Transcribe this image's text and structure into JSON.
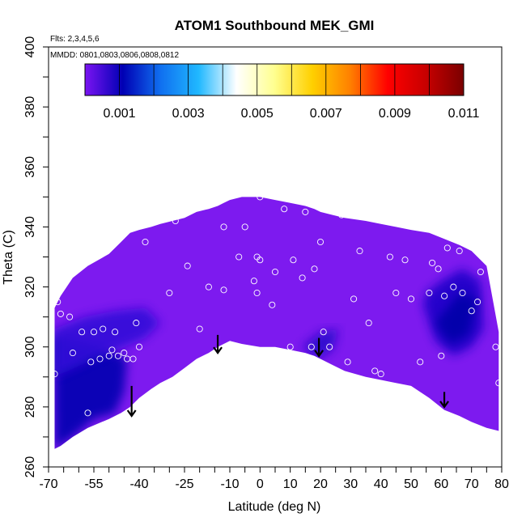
{
  "chart_data": {
    "type": "heatmap",
    "title": "ATOM1 Southbound MEK_GMI",
    "flights_note": "Flts: 2,3,4,5,6",
    "dates_note": "MMDD: 0801,0803,0806,0808,0812",
    "xlabel": "Latitude (deg N)",
    "ylabel": "Theta (C)",
    "xlim": [
      -70,
      80
    ],
    "ylim": [
      260,
      400
    ],
    "x_ticks": [
      -70,
      -55,
      -40,
      -25,
      -10,
      0,
      10,
      20,
      30,
      40,
      50,
      60,
      70,
      80
    ],
    "y_ticks": [
      260,
      280,
      300,
      320,
      340,
      360,
      380,
      400
    ],
    "colorbar": {
      "min": 0,
      "max": 0.011,
      "tick_values": [
        0.001,
        0.003,
        0.005,
        0.007,
        0.009,
        0.011
      ],
      "tick_labels": [
        "0.001",
        "0.003",
        "0.005",
        "0.007",
        "0.009",
        "0.011"
      ],
      "colors": [
        "#7b14f2",
        "#0000b4",
        "#1070f0",
        "#20b8ff",
        "#ffffff",
        "#ffff90",
        "#ffd000",
        "#ff8000",
        "#ff0000",
        "#c80000",
        "#7a0000"
      ]
    },
    "field_color": "#7d1aef",
    "boundary": {
      "latitude": [
        -68,
        -66,
        -62,
        -57,
        -50,
        -46,
        -43,
        -40,
        -36,
        -33,
        -29,
        -25,
        -21,
        -17,
        -14,
        -12,
        -10,
        -6,
        0,
        5,
        10,
        15,
        18,
        20,
        24,
        28,
        35,
        40,
        45,
        50,
        56,
        61,
        66,
        70,
        75,
        79
      ],
      "theta_top": [
        313,
        317,
        323,
        327,
        331,
        335,
        338,
        339,
        340,
        341,
        342,
        343,
        345,
        346,
        347,
        348,
        349,
        350,
        350,
        349,
        348,
        347,
        346,
        345,
        344,
        343,
        342,
        341,
        340,
        339,
        338,
        336,
        334,
        332,
        327,
        305
      ],
      "theta_bottom": [
        266,
        267,
        270,
        273,
        276,
        278,
        280,
        283,
        286,
        288,
        290,
        293,
        296,
        298,
        300,
        301,
        302,
        301,
        300,
        300,
        299,
        298,
        297,
        296,
        294,
        292,
        290,
        289,
        288,
        287,
        283,
        279,
        277,
        275,
        273,
        272
      ]
    },
    "low_zones": [
      {
        "latitude": [
          -68,
          -62,
          -55,
          -48,
          -45,
          -44,
          -52,
          -60,
          -68
        ],
        "theta": [
          266,
          270,
          276,
          278,
          285,
          296,
          300,
          302,
          304
        ],
        "color": "#0000b0"
      },
      {
        "latitude": [
          -68,
          -55,
          -45,
          -38,
          -33,
          -38,
          -48,
          -58,
          -68
        ],
        "theta": [
          290,
          296,
          300,
          303,
          308,
          313,
          312,
          310,
          306
        ],
        "color": "#3210d8"
      },
      {
        "latitude": [
          54,
          58,
          64,
          70,
          74,
          73,
          67,
          60,
          55
        ],
        "theta": [
          314,
          302,
          297,
          300,
          306,
          322,
          326,
          322,
          318
        ],
        "color": "#1a00c8"
      },
      {
        "latitude": [
          58,
          63,
          69,
          72,
          66
        ],
        "theta": [
          308,
          301,
          304,
          316,
          318
        ],
        "color": "#0000a8"
      },
      {
        "latitude": [
          14,
          19,
          24,
          26,
          20
        ],
        "theta": [
          300,
          296,
          299,
          306,
          305
        ],
        "color": "#2a0acc"
      }
    ],
    "sample_points": {
      "latitude": [
        -68,
        -67,
        -66,
        -63,
        -62,
        -59,
        -57,
        -56,
        -55,
        -53,
        -52,
        -50,
        -49,
        -48,
        -47,
        -45,
        -44,
        -43,
        -42,
        -41,
        -40,
        -38,
        -37,
        -36,
        -32,
        -30,
        -28,
        -24,
        -22,
        -20,
        -17,
        -12,
        -12,
        -7,
        -5,
        -2,
        -1,
        -1,
        0,
        0,
        4,
        5,
        8,
        10,
        11,
        12,
        14,
        15,
        17,
        18,
        20,
        21,
        23,
        27,
        29,
        31,
        33,
        36,
        38,
        40,
        43,
        45,
        48,
        50,
        53,
        56,
        57,
        59,
        60,
        61,
        62,
        64,
        66,
        67,
        70,
        72,
        73,
        78,
        79
      ],
      "theta": [
        291,
        315,
        311,
        310,
        298,
        305,
        278,
        295,
        305,
        296,
        306,
        297,
        299,
        305,
        297,
        298,
        296,
        278,
        296,
        308,
        300,
        335,
        283,
        342,
        286,
        318,
        342,
        327,
        293,
        306,
        320,
        319,
        340,
        330,
        340,
        322,
        330,
        318,
        329,
        350,
        314,
        325,
        346,
        300,
        329,
        351,
        323,
        345,
        300,
        326,
        335,
        305,
        300,
        344,
        295,
        316,
        332,
        308,
        292,
        291,
        330,
        318,
        329,
        316,
        295,
        318,
        328,
        326,
        297,
        317,
        333,
        320,
        332,
        318,
        312,
        315,
        325,
        300,
        288
      ],
      "outline_color": "#ffffff"
    },
    "arrows": {
      "latitude": [
        -42.5,
        -14,
        19.5,
        61
      ],
      "theta_from": [
        287,
        304,
        303,
        285
      ],
      "theta_to": [
        277,
        298,
        297,
        280
      ]
    }
  }
}
